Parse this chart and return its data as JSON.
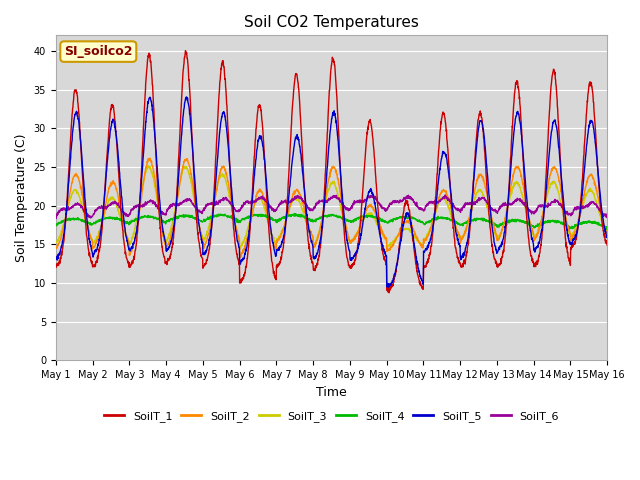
{
  "title": "Soil CO2 Temperatures",
  "xlabel": "Time",
  "ylabel": "Soil Temperature (C)",
  "annotation": "SI_soilco2",
  "ylim": [
    0,
    42
  ],
  "yticks": [
    0,
    5,
    10,
    15,
    20,
    25,
    30,
    35,
    40
  ],
  "x_labels": [
    "May 1",
    "May 2",
    "May 3",
    "May 4",
    "May 5",
    "May 6",
    "May 7",
    "May 8",
    "May 9",
    "May 10",
    "May 11",
    "May 12",
    "May 13",
    "May 14",
    "May 15",
    "May 16"
  ],
  "n_days": 15,
  "colors": {
    "SoilT_1": "#cc0000",
    "SoilT_2": "#ff8800",
    "SoilT_3": "#cccc00",
    "SoilT_4": "#00bb00",
    "SoilT_5": "#0000cc",
    "SoilT_6": "#990099"
  },
  "background_color": "#d8d8d8",
  "grid_color": "#ffffff",
  "annotation_bg": "#ffffcc",
  "annotation_border": "#cc9900",
  "peak_heights_1": [
    35,
    33,
    39.5,
    39.8,
    38.5,
    33,
    37,
    39,
    31,
    20.5,
    32,
    32,
    36,
    37.5,
    36
  ],
  "min_heights_1": [
    12,
    12,
    12,
    12.5,
    12,
    10,
    12,
    11.5,
    12,
    9,
    12,
    12,
    12,
    12,
    14.5
  ],
  "peak_heights_5": [
    32,
    31,
    34,
    34,
    32,
    29,
    29,
    32,
    22,
    19,
    27,
    31,
    32,
    31,
    31
  ],
  "min_heights_5": [
    13,
    13.5,
    14,
    14,
    13.5,
    12.5,
    14,
    13,
    13,
    9.5,
    14,
    13,
    14,
    14,
    15
  ],
  "peak_heights_2": [
    24,
    23,
    26,
    26,
    25,
    22,
    22,
    25,
    20,
    18,
    22,
    24,
    25,
    25,
    24
  ],
  "min_heights_2": [
    14,
    14,
    13,
    14,
    14,
    13,
    15,
    14,
    15,
    14,
    15,
    15,
    15,
    15,
    15
  ],
  "peak_heights_3": [
    22,
    21,
    25,
    25,
    24,
    21,
    21,
    23,
    19,
    17,
    21,
    22,
    23,
    23,
    22
  ],
  "min_heights_3": [
    14.5,
    14.5,
    14,
    14.5,
    14.5,
    14,
    15,
    14,
    15,
    14.5,
    15,
    15,
    15,
    15,
    15.5
  ]
}
